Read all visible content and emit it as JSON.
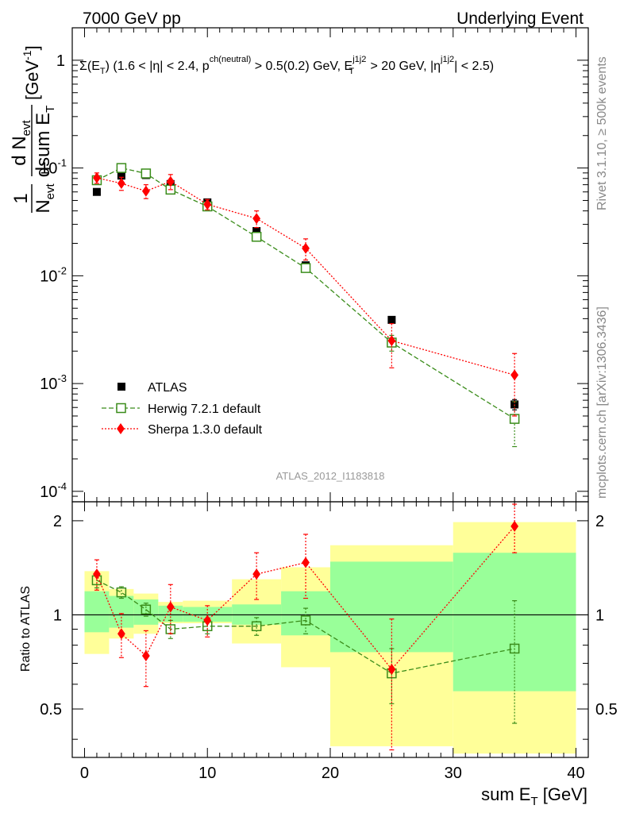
{
  "header": {
    "left": "7000 GeV pp",
    "right": "Underlying Event"
  },
  "side": {
    "rivet": "Rivet 3.1.10, ≥ 500k events",
    "mcplots": "mcplots.cern.ch [arXiv:1306.3436]"
  },
  "watermark": "ATLAS_2012_I1183818",
  "title_text": "Σ(E_T) (1.6 < |η| < 2.4, p^ch(neutral) > 0.5(0.2) GeV, E_T^j1j2 > 20 GeV, |η^j1j2| < 2.5)",
  "ylabel": "1/N_evt dN_evt/dsum E_T [GeV^-1]",
  "ratio_ylabel": "Ratio to ATLAS",
  "xlabel": "sum E_T [GeV]",
  "colors": {
    "data": "#000000",
    "herwig": "#3a8c1a",
    "sherpa": "#ff0000",
    "band_inner": "#99ff99",
    "band_outer": "#ffff99"
  },
  "chart_data": {
    "type": "scatter",
    "x_bins": [
      [
        0,
        2
      ],
      [
        2,
        4
      ],
      [
        4,
        6
      ],
      [
        6,
        8
      ],
      [
        8,
        12
      ],
      [
        12,
        16
      ],
      [
        16,
        20
      ],
      [
        20,
        30
      ],
      [
        30,
        40
      ]
    ],
    "x": [
      1,
      3,
      5,
      7,
      10,
      14,
      18,
      25,
      35
    ],
    "xlim": [
      -1,
      41
    ],
    "xticks": [
      0,
      10,
      20,
      30,
      40
    ],
    "ylim_main": [
      8e-05,
      2.0
    ],
    "yticks_main": [
      {
        "v": 1,
        "label": "1"
      },
      {
        "v": 0.1,
        "label": "10^-1"
      },
      {
        "v": 0.01,
        "label": "10^-2"
      },
      {
        "v": 0.001,
        "label": "10^-3"
      },
      {
        "v": 0.0001,
        "label": "10^-4"
      }
    ],
    "ylim_ratio": [
      0.35,
      2.3
    ],
    "yticks_ratio": [
      {
        "v": 0.5,
        "label": "0.5"
      },
      {
        "v": 1,
        "label": "1"
      },
      {
        "v": 2,
        "label": "2"
      }
    ],
    "series": [
      {
        "name": "ATLAS",
        "style": "data",
        "values": [
          0.06,
          0.085,
          0.086,
          0.071,
          0.048,
          0.026,
          0.0125,
          0.0039,
          0.00064
        ],
        "errors": [
          0.002,
          0.002,
          0.002,
          0.002,
          0.0015,
          0.001,
          0.0007,
          0.0002,
          7e-05
        ]
      },
      {
        "name": "Herwig 7.2.1 default",
        "style": "herwig",
        "values": [
          0.077,
          0.1,
          0.089,
          0.063,
          0.044,
          0.023,
          0.0118,
          0.0024,
          0.00047
        ],
        "errors": [
          0.004,
          0.004,
          0.004,
          0.003,
          0.002,
          0.0015,
          0.001,
          0.0004,
          0.00021
        ]
      },
      {
        "name": "Sherpa 1.3.0 default",
        "style": "sherpa",
        "values": [
          0.081,
          0.072,
          0.061,
          0.075,
          0.046,
          0.034,
          0.018,
          0.0025,
          0.0012
        ],
        "errors": [
          0.009,
          0.01,
          0.009,
          0.012,
          0.005,
          0.006,
          0.004,
          0.0011,
          0.0007
        ]
      }
    ],
    "ratio": {
      "band_inner": [
        [
          0.88,
          1.19
        ],
        [
          0.91,
          1.15
        ],
        [
          0.93,
          1.12
        ],
        [
          0.95,
          1.07
        ],
        [
          0.95,
          1.06
        ],
        [
          0.93,
          1.08
        ],
        [
          0.86,
          1.19
        ],
        [
          0.76,
          1.48
        ],
        [
          0.57,
          1.58
        ]
      ],
      "band_outer": [
        [
          0.75,
          1.38
        ],
        [
          0.84,
          1.21
        ],
        [
          0.87,
          1.17
        ],
        [
          0.94,
          1.1
        ],
        [
          0.94,
          1.11
        ],
        [
          0.81,
          1.3
        ],
        [
          0.68,
          1.42
        ],
        [
          0.38,
          1.67
        ],
        [
          0.36,
          1.98
        ]
      ],
      "herwig": [
        1.29,
        1.18,
        1.04,
        0.9,
        0.92,
        0.92,
        0.96,
        0.65,
        0.78
      ],
      "herwig_err": [
        0.07,
        0.05,
        0.05,
        0.06,
        0.05,
        0.06,
        0.09,
        0.13,
        0.33
      ],
      "sherpa": [
        1.35,
        0.87,
        0.74,
        1.06,
        0.96,
        1.35,
        1.47,
        0.67,
        1.92
      ],
      "sherpa_err": [
        0.15,
        0.14,
        0.15,
        0.19,
        0.11,
        0.23,
        0.34,
        0.3,
        0.34
      ]
    },
    "legend": [
      "ATLAS",
      "Herwig 7.2.1 default",
      "Sherpa 1.3.0 default"
    ]
  }
}
